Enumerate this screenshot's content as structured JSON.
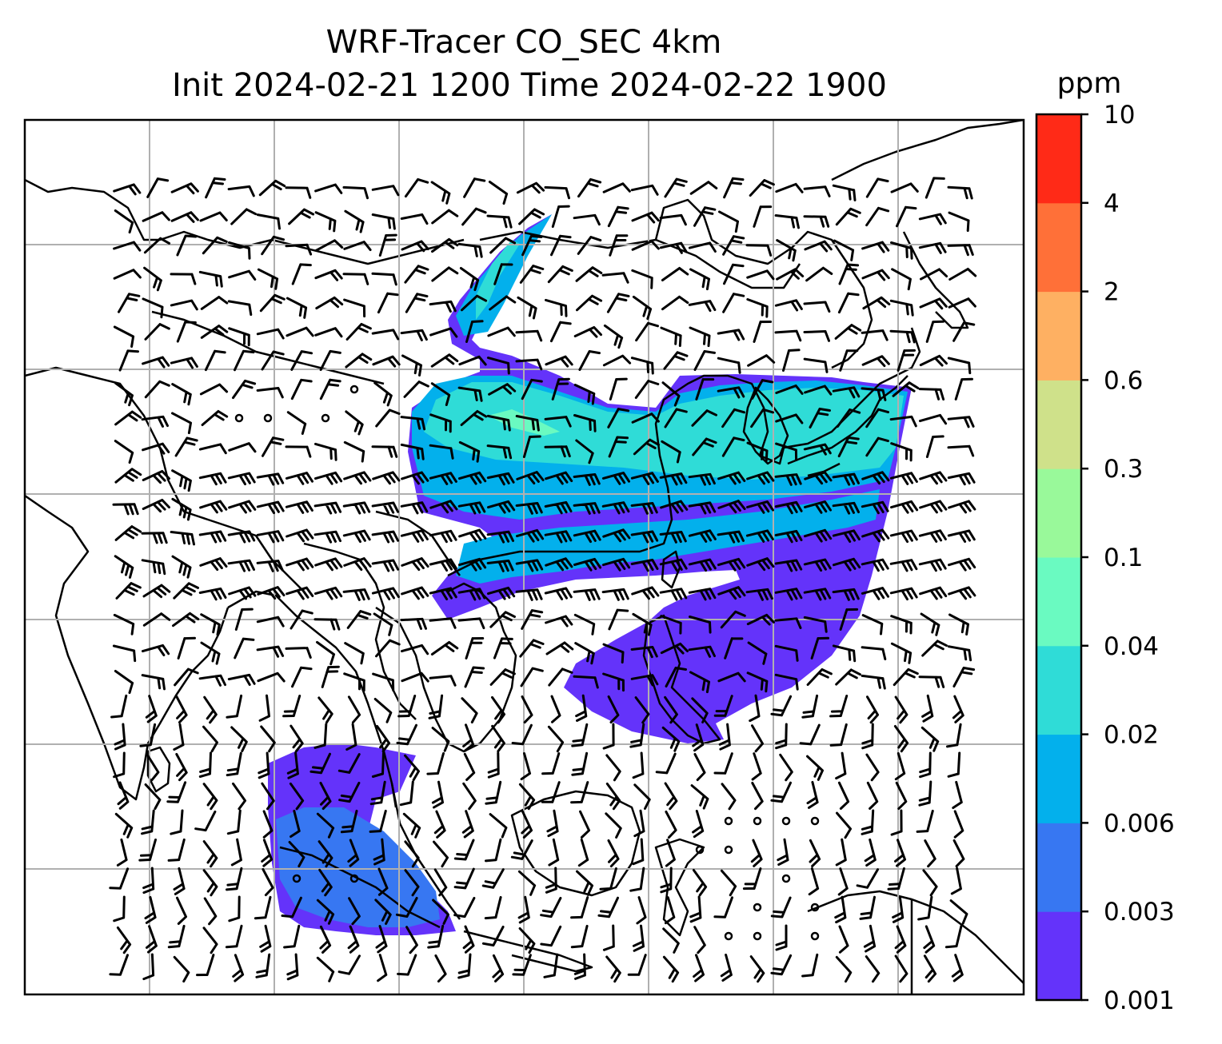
{
  "title": {
    "line1": "WRF-Tracer CO_SEC 4km",
    "line2": "Init 2024-02-21 1200 Time 2024-02-22 1900"
  },
  "colorbar": {
    "unit": "ppm",
    "levels": [
      "0.001",
      "0.003",
      "0.006",
      "0.02",
      "0.04",
      "0.1",
      "0.3",
      "0.6",
      "2",
      "4",
      "10"
    ],
    "colors": [
      "#6433fa",
      "#3777f2",
      "#03b0ec",
      "#2fdcd7",
      "#6afac1",
      "#99f99a",
      "#cfe18a",
      "#feb062",
      "#ff7038",
      "#ff2a17"
    ]
  },
  "map": {
    "field": "CO_SEC tracer concentration",
    "background": "#ffffff",
    "coastline_color": "#000000",
    "gridline_color": "#b0b0b0",
    "gridlines_shown": true,
    "wind_barbs_shown": true
  }
}
